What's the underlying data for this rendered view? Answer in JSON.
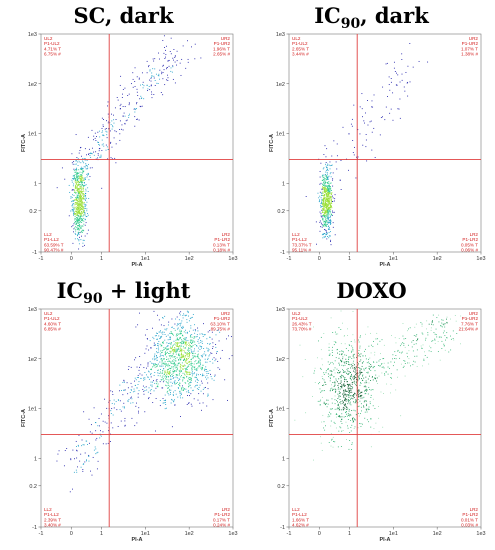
{
  "chart_data": [
    {
      "type": "scatter",
      "title": "SC, dark",
      "title_main": "SC, dark",
      "title_sub": "",
      "title_rest": "",
      "xlabel": "PI-A",
      "ylabel": "FITC-A",
      "scale": "biexponential",
      "xlim": [
        -1,
        1000
      ],
      "ylim": [
        -1,
        1000
      ],
      "x_ticks": [
        "-1",
        "0",
        "1",
        "1e1",
        "1e2",
        "1e3"
      ],
      "y_ticks": [
        "-1",
        "0.2",
        "1",
        "1e1",
        "1e2",
        "1e3"
      ],
      "gate": {
        "x": 1.5,
        "y": 3
      },
      "quadrants": {
        "UL": {
          "name": "UL2",
          "gate": "P1-UL2",
          "pct_total": "4.71% T",
          "pct_parent": "6.75% #"
        },
        "UR": {
          "name": "UR2",
          "gate": "P1-UR2",
          "pct_total": "1.96% T",
          "pct_parent": "2.65% #"
        },
        "LL": {
          "name": "LL2",
          "gate": "P1-LL2",
          "pct_total": "63.59% T",
          "pct_parent": "90.47% #"
        },
        "LR": {
          "name": "LR2",
          "gate": "P1-LR2",
          "pct_total": "0.13% T",
          "pct_parent": "0.18% #"
        }
      },
      "density": "dense cluster at low PI / low FITC with a tail extending into the upper-right quadrant",
      "colormap": [
        "#1a1aa8",
        "#1fa0c8",
        "#2cc98a",
        "#9be03a"
      ]
    },
    {
      "type": "scatter",
      "title": "IC90, dark",
      "title_main": "IC",
      "title_sub": "90",
      "title_rest": ", dark",
      "xlabel": "PI-A",
      "ylabel": "FITC-A",
      "scale": "biexponential",
      "xlim": [
        -1,
        1000
      ],
      "ylim": [
        -1,
        1000
      ],
      "x_ticks": [
        "-1",
        "0",
        "1",
        "1e1",
        "1e2",
        "1e3"
      ],
      "y_ticks": [
        "-1",
        "0.2",
        "1",
        "1e1",
        "1e2",
        "1e3"
      ],
      "gate": {
        "x": 1.5,
        "y": 3
      },
      "quadrants": {
        "UL": {
          "name": "UL2",
          "gate": "P1-UL2",
          "pct_total": "2.65% T",
          "pct_parent": "3.44% #"
        },
        "UR": {
          "name": "UR2",
          "gate": "P1-UR2",
          "pct_total": "1.07% T",
          "pct_parent": "1.38% #"
        },
        "LL": {
          "name": "LL2",
          "gate": "P1-LL2",
          "pct_total": "73.37% T",
          "pct_parent": "95.11% #"
        },
        "LR": {
          "name": "LR2",
          "gate": "P1-LR2",
          "pct_total": "0.05% T",
          "pct_parent": "0.06% #"
        }
      },
      "density": "tight cluster at low PI / low FITC with a sparse tail into the upper-right quadrant",
      "colormap": [
        "#1a1aa8",
        "#1fa0c8",
        "#2cc98a",
        "#9be03a"
      ]
    },
    {
      "type": "scatter",
      "title": "IC90 + light",
      "title_main": "IC",
      "title_sub": "90",
      "title_rest": " + light",
      "xlabel": "PI-A",
      "ylabel": "FITC-A",
      "scale": "biexponential",
      "xlim": [
        -1,
        1000
      ],
      "ylim": [
        -1,
        1000
      ],
      "x_ticks": [
        "-1",
        "0",
        "1",
        "1e1",
        "1e2",
        "1e3"
      ],
      "y_ticks": [
        "-1",
        "0.2",
        "1",
        "1e1",
        "1e2",
        "1e3"
      ],
      "gate": {
        "x": 1.5,
        "y": 3
      },
      "quadrants": {
        "UL": {
          "name": "UL2",
          "gate": "P1-UL2",
          "pct_total": "4.60% T",
          "pct_parent": "6.85% #"
        },
        "UR": {
          "name": "UR2",
          "gate": "P1-UR2",
          "pct_total": "63.10% T",
          "pct_parent": "89.75% #"
        },
        "LL": {
          "name": "LL2",
          "gate": "P1-LL2",
          "pct_total": "2.39% T",
          "pct_parent": "3.40% #"
        },
        "LR": {
          "name": "LR2",
          "gate": "P1-LR2",
          "pct_total": "0.17% T",
          "pct_parent": "0.24% #"
        }
      },
      "density": "dense cluster in the upper-right quadrant (high PI / high FITC)",
      "colormap": [
        "#1a1aa8",
        "#1fa0c8",
        "#2cc98a",
        "#9be03a"
      ]
    },
    {
      "type": "scatter",
      "title": "DOXO",
      "title_main": "DOXO",
      "title_sub": "",
      "title_rest": "",
      "xlabel": "PI-A",
      "ylabel": "FITC-A",
      "scale": "biexponential",
      "xlim": [
        -1,
        1000
      ],
      "ylim": [
        -1,
        1000
      ],
      "x_ticks": [
        "-1",
        "0",
        "1",
        "1e1",
        "1e2",
        "1e3"
      ],
      "y_ticks": [
        "-1",
        "0.2",
        "1",
        "1e1",
        "1e2",
        "1e3"
      ],
      "gate": {
        "x": 1.5,
        "y": 3
      },
      "quadrants": {
        "UL": {
          "name": "UL2",
          "gate": "P1-UL2",
          "pct_total": "26.43% T",
          "pct_parent": "73.70% #"
        },
        "UR": {
          "name": "UR2",
          "gate": "P1-UR2",
          "pct_total": "7.76% T",
          "pct_parent": "21.64% #"
        },
        "LL": {
          "name": "LL2",
          "gate": "P1-LL2",
          "pct_total": "1.66% T",
          "pct_parent": "4.62% #"
        },
        "LR": {
          "name": "LR2",
          "gate": "P1-LR2",
          "pct_total": "0.01% T",
          "pct_parent": "0.03% #"
        }
      },
      "density": "broad cluster in the upper-left quadrant spreading toward the upper-right",
      "colormap": [
        "#9fe0b8",
        "#3cb87a",
        "#138a4a",
        "#0a5a2c"
      ]
    }
  ]
}
